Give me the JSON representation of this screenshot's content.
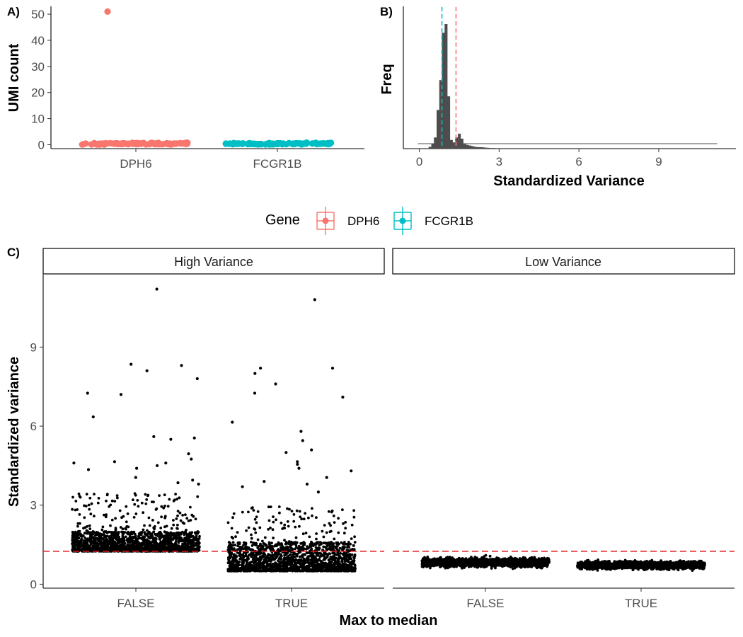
{
  "chart_data": [
    {
      "panel": "A)",
      "type": "scatter",
      "ylabel": "UMI count",
      "xlabel": "",
      "categories": [
        "DPH6",
        "FCGR1B"
      ],
      "ylim": [
        0,
        53
      ],
      "y_ticks": [
        0,
        10,
        20,
        30,
        40,
        50
      ],
      "y_tick_labels": [
        "0",
        "10",
        "20",
        "30",
        "40",
        "50"
      ],
      "grid": false,
      "series": [
        {
          "name": "DPH6",
          "color": "#F8766D",
          "points_summary": "approx. 80 cells jittered around UMI count 0-2 plus one outlier at 51",
          "outlier": 51,
          "typical_range": [
            0,
            2
          ]
        },
        {
          "name": "FCGR1B",
          "color": "#00BFC4",
          "points_summary": "approx. 80 cells jittered around UMI count 0-2",
          "typical_range": [
            0,
            2.5
          ]
        }
      ]
    },
    {
      "panel": "B)",
      "type": "bar",
      "subtype": "histogram",
      "xlabel": "Standardized Variance",
      "ylabel": "Freq",
      "xlim": [
        -0.6,
        11.9
      ],
      "x_ticks": [
        0,
        3,
        6,
        9
      ],
      "x_tick_labels": [
        "0",
        "3",
        "6",
        "9"
      ],
      "bar_color": "#4d4d4d",
      "bins": {
        "start": 0.35,
        "width": 0.1,
        "relative_heights": [
          0.015,
          0.04,
          0.09,
          0.31,
          0.55,
          0.93,
          1.0,
          0.42,
          0.07,
          0.05,
          0.09,
          0.12,
          0.08,
          0.04,
          0.03,
          0.025,
          0.02,
          0.015,
          0.012,
          0.012,
          0.01,
          0.008,
          0.006,
          0.005,
          0.005
        ]
      },
      "tail_to": 11.2,
      "vlines": [
        {
          "gene": "FCGR1B",
          "x": 0.85,
          "color": "#00BFC4",
          "style": "dashed"
        },
        {
          "gene": "DPH6",
          "x": 1.38,
          "color": "#F8766D",
          "style": "dashed"
        }
      ],
      "grid": false
    },
    {
      "panel": "C)",
      "type": "scatter",
      "xlabel": "Max to median",
      "ylabel": "Standardized variance",
      "facets": [
        "High Variance",
        "Low Variance"
      ],
      "categories": [
        "FALSE",
        "TRUE"
      ],
      "ylim": [
        -0.15,
        11.75
      ],
      "y_ticks": [
        0,
        3,
        6,
        9
      ],
      "y_tick_labels": [
        "0",
        "3",
        "6",
        "9"
      ],
      "hline": {
        "y": 1.25,
        "color": "#E41A1C",
        "style": "dashed"
      },
      "point_color": "#000000",
      "groups": [
        {
          "facet": "High Variance",
          "category": "FALSE",
          "dense_range": [
            1.25,
            2.0
          ],
          "spread_to": 3.5,
          "notable_points": [
            11.2,
            8.35,
            8.3,
            8.1,
            7.8,
            7.25,
            7.2,
            6.35,
            5.6,
            5.55,
            5.5,
            4.95,
            4.75,
            4.65,
            4.6,
            4.6,
            4.5,
            4.4,
            4.35,
            4.05,
            3.95,
            3.85,
            3.8
          ]
        },
        {
          "facet": "High Variance",
          "category": "TRUE",
          "dense_range": [
            0.5,
            1.6
          ],
          "spread_to": 3.0,
          "notable_points": [
            10.8,
            8.2,
            8.2,
            8.0,
            7.6,
            7.25,
            7.1,
            6.15,
            5.8,
            5.45,
            5.1,
            5.0,
            4.65,
            4.55,
            4.4,
            4.3,
            4.05,
            3.9,
            3.8,
            3.7,
            3.5
          ]
        },
        {
          "facet": "Low Variance",
          "category": "FALSE",
          "dense_range": [
            0.45,
            1.2
          ]
        },
        {
          "facet": "Low Variance",
          "category": "TRUE",
          "dense_range": [
            0.4,
            1.05
          ]
        }
      ],
      "grid": false
    }
  ],
  "legend": {
    "title": "Gene",
    "items": [
      {
        "label": "DPH6",
        "color": "#F8766D"
      },
      {
        "label": "FCGR1B",
        "color": "#00BFC4"
      }
    ]
  }
}
